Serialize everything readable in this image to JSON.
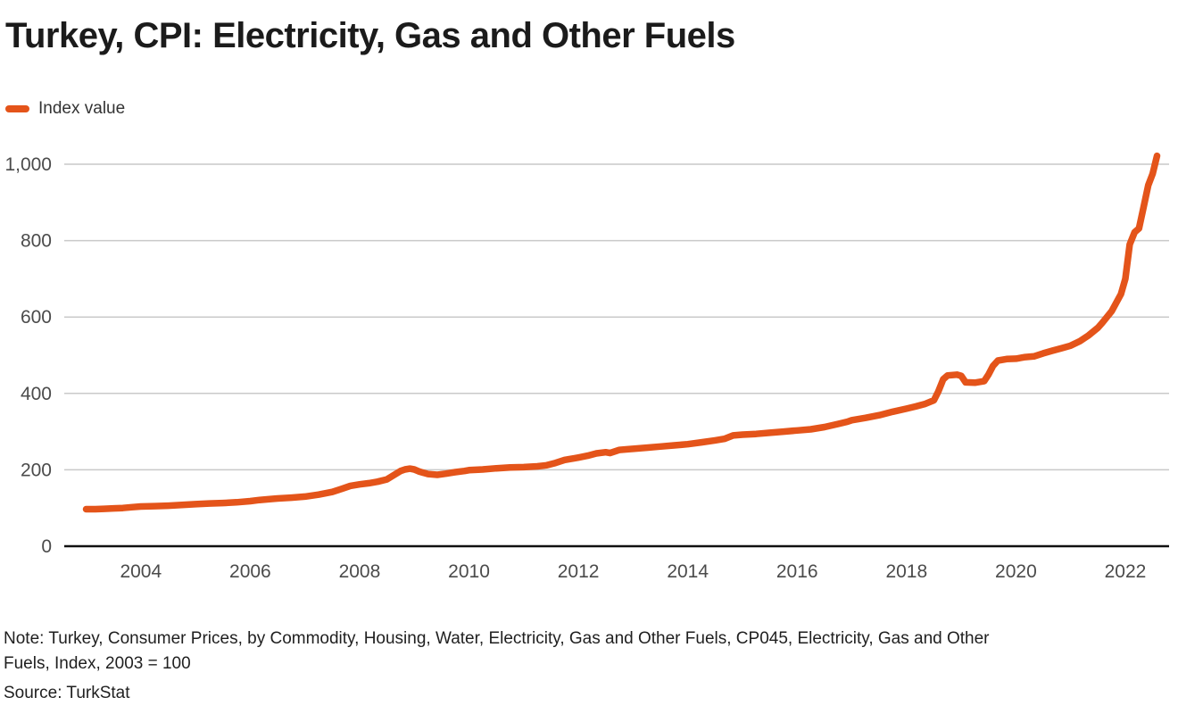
{
  "title": "Turkey, CPI: Electricity, Gas and Other Fuels",
  "legend": {
    "label": "Index value"
  },
  "note": {
    "line1": "Note: Turkey, Consumer Prices, by Commodity, Housing, Water, Electricity, Gas and Other Fuels, CP045, Electricity, Gas and Other",
    "line2": "Fuels, Index, 2003 = 100"
  },
  "source": "Source: TurkStat",
  "colors": {
    "line": "#E4541A",
    "grid": "#c9c9c9",
    "axis": "#111111",
    "tick_text": "#4b4b4b"
  },
  "chart_data": {
    "type": "line",
    "title": "Turkey, CPI: Electricity, Gas and Other Fuels",
    "xlabel": "",
    "ylabel": "Index value",
    "legend_position": "top-left",
    "grid": true,
    "xlim": [
      2002.6,
      2022.8
    ],
    "ylim": [
      0,
      1000
    ],
    "xticks": [
      2004,
      2006,
      2008,
      2010,
      2012,
      2014,
      2016,
      2018,
      2020,
      2022
    ],
    "yticks": [
      0,
      200,
      400,
      600,
      800,
      1000
    ],
    "ytick_labels": [
      "0",
      "200",
      "400",
      "600",
      "800",
      "1,000"
    ],
    "series": [
      {
        "name": "Index value",
        "color": "#E4541A",
        "points": [
          [
            2003.0,
            97
          ],
          [
            2003.17,
            97
          ],
          [
            2003.33,
            98
          ],
          [
            2003.5,
            99
          ],
          [
            2003.67,
            100
          ],
          [
            2003.83,
            102
          ],
          [
            2004.0,
            104
          ],
          [
            2004.25,
            105
          ],
          [
            2004.5,
            106
          ],
          [
            2004.75,
            108
          ],
          [
            2005.0,
            110
          ],
          [
            2005.25,
            112
          ],
          [
            2005.5,
            113
          ],
          [
            2005.75,
            115
          ],
          [
            2006.0,
            118
          ],
          [
            2006.17,
            121
          ],
          [
            2006.33,
            123
          ],
          [
            2006.5,
            125
          ],
          [
            2006.75,
            127
          ],
          [
            2007.0,
            130
          ],
          [
            2007.25,
            135
          ],
          [
            2007.5,
            142
          ],
          [
            2007.67,
            150
          ],
          [
            2007.83,
            158
          ],
          [
            2008.0,
            162
          ],
          [
            2008.17,
            165
          ],
          [
            2008.33,
            169
          ],
          [
            2008.5,
            175
          ],
          [
            2008.58,
            182
          ],
          [
            2008.67,
            190
          ],
          [
            2008.75,
            197
          ],
          [
            2008.83,
            201
          ],
          [
            2008.92,
            203
          ],
          [
            2009.0,
            201
          ],
          [
            2009.08,
            196
          ],
          [
            2009.17,
            192
          ],
          [
            2009.25,
            189
          ],
          [
            2009.42,
            187
          ],
          [
            2009.58,
            190
          ],
          [
            2009.75,
            194
          ],
          [
            2009.92,
            197
          ],
          [
            2010.0,
            199
          ],
          [
            2010.25,
            201
          ],
          [
            2010.5,
            204
          ],
          [
            2010.75,
            206
          ],
          [
            2011.0,
            207
          ],
          [
            2011.25,
            209
          ],
          [
            2011.42,
            212
          ],
          [
            2011.58,
            218
          ],
          [
            2011.75,
            226
          ],
          [
            2011.92,
            230
          ],
          [
            2012.0,
            232
          ],
          [
            2012.17,
            237
          ],
          [
            2012.33,
            243
          ],
          [
            2012.5,
            246
          ],
          [
            2012.58,
            244
          ],
          [
            2012.75,
            252
          ],
          [
            2012.92,
            254
          ],
          [
            2013.0,
            255
          ],
          [
            2013.25,
            258
          ],
          [
            2013.5,
            261
          ],
          [
            2013.75,
            264
          ],
          [
            2014.0,
            267
          ],
          [
            2014.25,
            272
          ],
          [
            2014.5,
            277
          ],
          [
            2014.67,
            281
          ],
          [
            2014.83,
            290
          ],
          [
            2015.0,
            292
          ],
          [
            2015.25,
            294
          ],
          [
            2015.5,
            297
          ],
          [
            2015.75,
            300
          ],
          [
            2016.0,
            303
          ],
          [
            2016.25,
            306
          ],
          [
            2016.5,
            312
          ],
          [
            2016.75,
            320
          ],
          [
            2016.92,
            326
          ],
          [
            2017.0,
            330
          ],
          [
            2017.25,
            336
          ],
          [
            2017.5,
            343
          ],
          [
            2017.75,
            352
          ],
          [
            2018.0,
            360
          ],
          [
            2018.17,
            366
          ],
          [
            2018.33,
            372
          ],
          [
            2018.5,
            382
          ],
          [
            2018.58,
            405
          ],
          [
            2018.67,
            437
          ],
          [
            2018.75,
            447
          ],
          [
            2018.92,
            449
          ],
          [
            2019.0,
            446
          ],
          [
            2019.08,
            429
          ],
          [
            2019.25,
            428
          ],
          [
            2019.42,
            432
          ],
          [
            2019.5,
            450
          ],
          [
            2019.58,
            472
          ],
          [
            2019.67,
            486
          ],
          [
            2019.83,
            490
          ],
          [
            2020.0,
            491
          ],
          [
            2020.17,
            495
          ],
          [
            2020.33,
            497
          ],
          [
            2020.5,
            505
          ],
          [
            2020.67,
            512
          ],
          [
            2020.83,
            518
          ],
          [
            2021.0,
            525
          ],
          [
            2021.17,
            537
          ],
          [
            2021.33,
            552
          ],
          [
            2021.5,
            572
          ],
          [
            2021.58,
            585
          ],
          [
            2021.75,
            615
          ],
          [
            2021.92,
            660
          ],
          [
            2022.0,
            700
          ],
          [
            2022.08,
            790
          ],
          [
            2022.17,
            822
          ],
          [
            2022.25,
            832
          ],
          [
            2022.33,
            885
          ],
          [
            2022.42,
            945
          ],
          [
            2022.5,
            975
          ],
          [
            2022.58,
            1022
          ]
        ]
      }
    ]
  }
}
